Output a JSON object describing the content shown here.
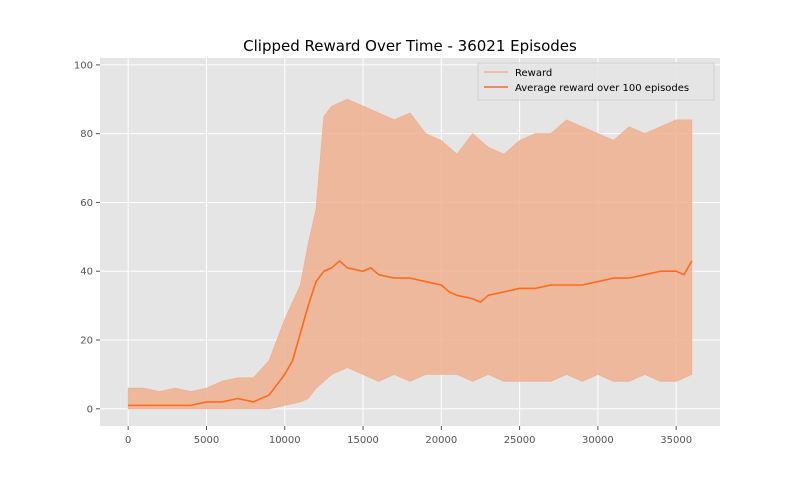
{
  "chart_data": {
    "type": "line",
    "title": "Clipped Reward Over Time - 36021 Episodes",
    "xlabel": "",
    "ylabel": "",
    "xlim": [
      -1800,
      37800
    ],
    "ylim": [
      -5,
      102
    ],
    "x_ticks": [
      0,
      5000,
      10000,
      15000,
      20000,
      25000,
      30000,
      35000
    ],
    "y_ticks": [
      0,
      20,
      40,
      60,
      80,
      100
    ],
    "grid": true,
    "legend_position": "top-right",
    "background_color": "#e5e5e5",
    "series": [
      {
        "name": "Reward",
        "color": "#f0b090",
        "style": "band",
        "x": [
          0,
          1000,
          2000,
          3000,
          4000,
          5000,
          6000,
          7000,
          8000,
          9000,
          10000,
          11000,
          11500,
          12000,
          12500,
          13000,
          14000,
          15000,
          16000,
          17000,
          18000,
          19000,
          20000,
          21000,
          22000,
          23000,
          24000,
          25000,
          26000,
          27000,
          28000,
          29000,
          30000,
          31000,
          32000,
          33000,
          34000,
          35000,
          36000
        ],
        "low": [
          0,
          0,
          0,
          0,
          0,
          0,
          0,
          0,
          0,
          0,
          1,
          2,
          3,
          6,
          8,
          10,
          12,
          10,
          8,
          10,
          8,
          10,
          10,
          10,
          8,
          10,
          8,
          8,
          8,
          8,
          10,
          8,
          10,
          8,
          8,
          10,
          8,
          8,
          10
        ],
        "high": [
          6,
          6,
          5,
          6,
          5,
          6,
          8,
          9,
          9,
          14,
          26,
          36,
          48,
          58,
          85,
          88,
          90,
          88,
          86,
          84,
          86,
          80,
          78,
          74,
          80,
          76,
          74,
          78,
          80,
          80,
          84,
          82,
          80,
          78,
          82,
          80,
          82,
          84,
          84
        ]
      },
      {
        "name": "Average reward over 100 episodes",
        "color": "#ff6a1a",
        "style": "line",
        "x": [
          0,
          1000,
          2000,
          3000,
          4000,
          5000,
          6000,
          7000,
          8000,
          9000,
          10000,
          10500,
          11000,
          11500,
          12000,
          12500,
          13000,
          13500,
          14000,
          15000,
          15500,
          16000,
          17000,
          18000,
          19000,
          20000,
          20500,
          21000,
          22000,
          22500,
          23000,
          24000,
          25000,
          26000,
          27000,
          28000,
          29000,
          30000,
          31000,
          32000,
          33000,
          34000,
          35000,
          35500,
          36000
        ],
        "y": [
          1,
          1,
          1,
          1,
          1,
          2,
          2,
          3,
          2,
          4,
          10,
          14,
          22,
          30,
          37,
          40,
          41,
          43,
          41,
          40,
          41,
          39,
          38,
          38,
          37,
          36,
          34,
          33,
          32,
          31,
          33,
          34,
          35,
          35,
          36,
          36,
          36,
          37,
          38,
          38,
          39,
          40,
          40,
          39,
          43
        ]
      }
    ]
  }
}
